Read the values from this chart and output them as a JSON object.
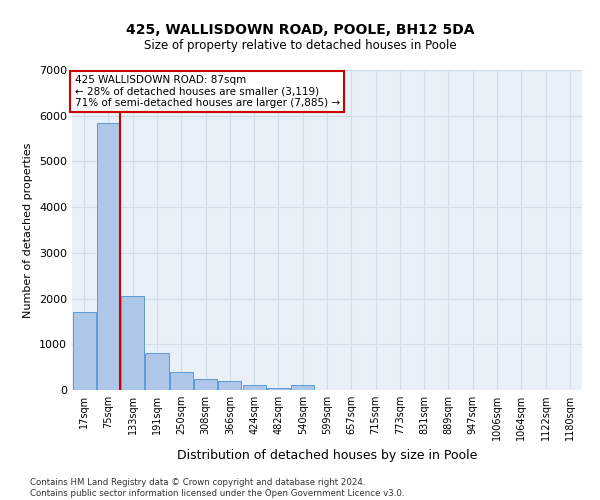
{
  "title": "425, WALLISDOWN ROAD, POOLE, BH12 5DA",
  "subtitle": "Size of property relative to detached houses in Poole",
  "xlabel": "Distribution of detached houses by size in Poole",
  "ylabel": "Number of detached properties",
  "categories": [
    "17sqm",
    "75sqm",
    "133sqm",
    "191sqm",
    "250sqm",
    "308sqm",
    "366sqm",
    "424sqm",
    "482sqm",
    "540sqm",
    "599sqm",
    "657sqm",
    "715sqm",
    "773sqm",
    "831sqm",
    "889sqm",
    "947sqm",
    "1006sqm",
    "1064sqm",
    "1122sqm",
    "1180sqm"
  ],
  "values": [
    1700,
    5850,
    2050,
    800,
    400,
    250,
    200,
    100,
    50,
    100,
    0,
    0,
    0,
    0,
    0,
    0,
    0,
    0,
    0,
    0,
    0
  ],
  "bar_color": "#aec6e8",
  "bar_edge_color": "#5b9bd5",
  "vline_color": "#cc0000",
  "vline_pos": 1.48,
  "annotation_text": "425 WALLISDOWN ROAD: 87sqm\n← 28% of detached houses are smaller (3,119)\n71% of semi-detached houses are larger (7,885) →",
  "annotation_box_color": "#ffffff",
  "annotation_box_edge_color": "#cc0000",
  "ylim": [
    0,
    7000
  ],
  "yticks": [
    0,
    1000,
    2000,
    3000,
    4000,
    5000,
    6000,
    7000
  ],
  "grid_color": "#d0dce8",
  "bg_color": "#eaf0f8",
  "footer": "Contains HM Land Registry data © Crown copyright and database right 2024.\nContains public sector information licensed under the Open Government Licence v3.0."
}
